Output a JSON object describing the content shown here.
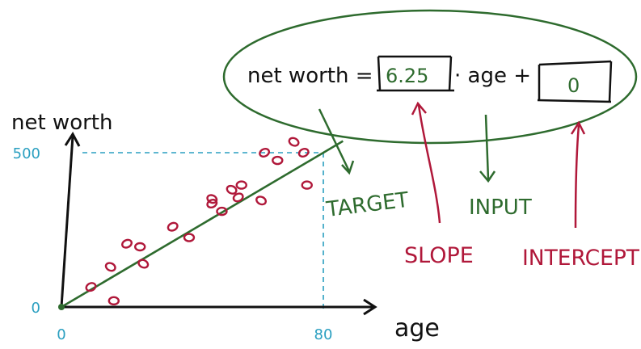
{
  "colors": {
    "axis": "#111111",
    "points": "#b0183a",
    "fit_line": "#2e6b2e",
    "guides": "#2a9fc0",
    "annotation_green": "#2e6b2e",
    "annotation_red": "#b0183a"
  },
  "equation": {
    "lhs": "net worth =",
    "slope_value": "6.25",
    "times_input": "· age +",
    "intercept_value": "0"
  },
  "labels": {
    "target": "TARGET",
    "input": "INPUT",
    "slope": "SLOPE",
    "intercept": "INTERCEPT"
  },
  "chart_data": {
    "type": "scatter",
    "xlabel": "age",
    "ylabel": "net worth",
    "x_ticks": [
      "0",
      "80"
    ],
    "y_ticks": [
      "0",
      "500"
    ],
    "xlim": [
      0,
      95
    ],
    "ylim": [
      0,
      590
    ],
    "grid": false,
    "highlight_point": {
      "x": 80,
      "y": 500
    },
    "fit_line": {
      "slope": 6.25,
      "intercept": 0,
      "x_range": [
        0,
        86
      ]
    },
    "points": [
      {
        "x": 9,
        "y": 65
      },
      {
        "x": 16,
        "y": 20
      },
      {
        "x": 15,
        "y": 130
      },
      {
        "x": 20,
        "y": 205
      },
      {
        "x": 24,
        "y": 195
      },
      {
        "x": 25,
        "y": 140
      },
      {
        "x": 34,
        "y": 260
      },
      {
        "x": 39,
        "y": 225
      },
      {
        "x": 46,
        "y": 350
      },
      {
        "x": 46,
        "y": 335
      },
      {
        "x": 49,
        "y": 310
      },
      {
        "x": 52,
        "y": 380
      },
      {
        "x": 54,
        "y": 355
      },
      {
        "x": 55,
        "y": 395
      },
      {
        "x": 61,
        "y": 345
      },
      {
        "x": 62,
        "y": 500
      },
      {
        "x": 66,
        "y": 475
      },
      {
        "x": 71,
        "y": 535
      },
      {
        "x": 74,
        "y": 500
      },
      {
        "x": 75,
        "y": 395
      }
    ]
  }
}
